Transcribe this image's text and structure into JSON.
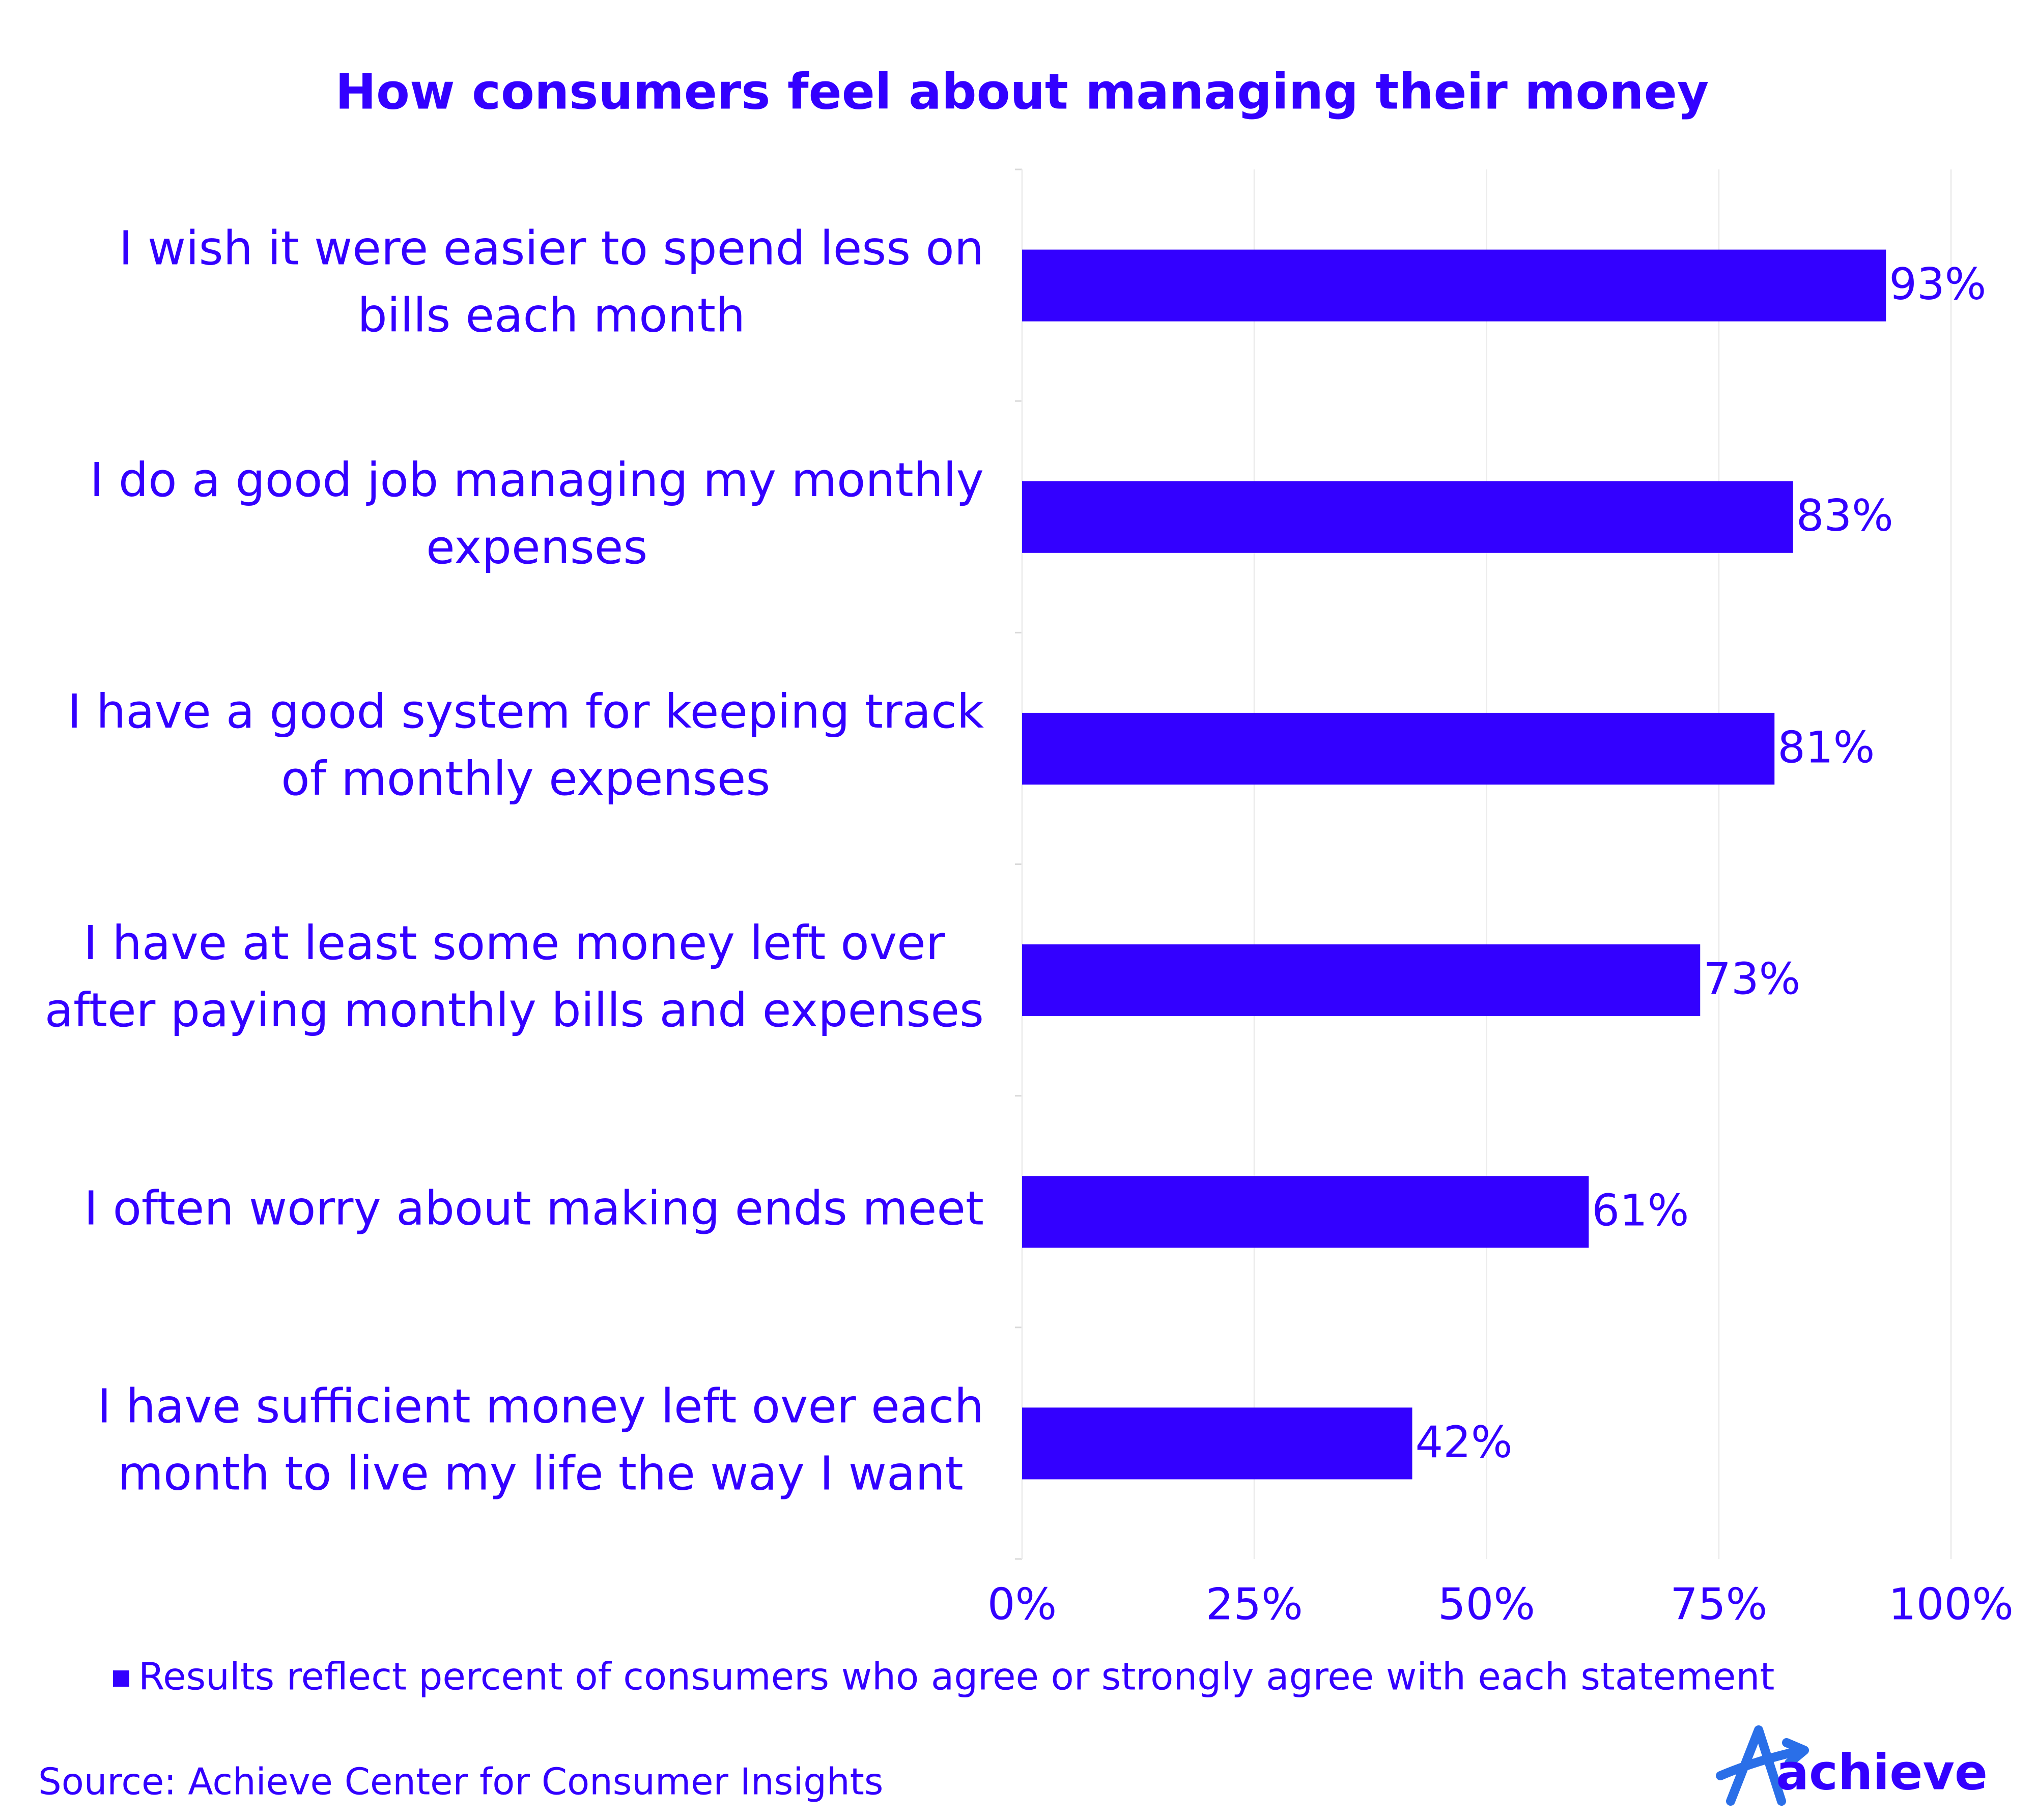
{
  "chart_data": {
    "type": "bar",
    "orientation": "horizontal",
    "title": "How consumers feel about managing their money",
    "categories": [
      "I wish it were easier to spend less on bills each month",
      "I do a good job managing my monthly expenses",
      "I have a good system for keeping track of monthly expenses",
      "I have at least some money left over after paying monthly bills and expenses",
      "I often worry about making ends meet",
      "I have sufficient money left over each month to live my life the way I want"
    ],
    "series": [
      {
        "name": "Results reflect percent of consumers who agree or strongly agree with each statement",
        "color": "#3300ff",
        "values": [
          93,
          83,
          81,
          73,
          61,
          42
        ],
        "value_labels": [
          "93%",
          "83%",
          "81%",
          "73%",
          "61%",
          "42%"
        ]
      }
    ],
    "xlim": [
      0,
      100
    ],
    "xticks": [
      {
        "value": 0,
        "label": "0%"
      },
      {
        "value": 25,
        "label": "25%"
      },
      {
        "value": 50,
        "label": "50%"
      },
      {
        "value": 75,
        "label": "75%"
      },
      {
        "value": 100,
        "label": "100%"
      }
    ],
    "grid": true,
    "legend": "bottom-left",
    "source": "Source: Achieve Center for Consumer Insights",
    "logo": "achieve"
  }
}
